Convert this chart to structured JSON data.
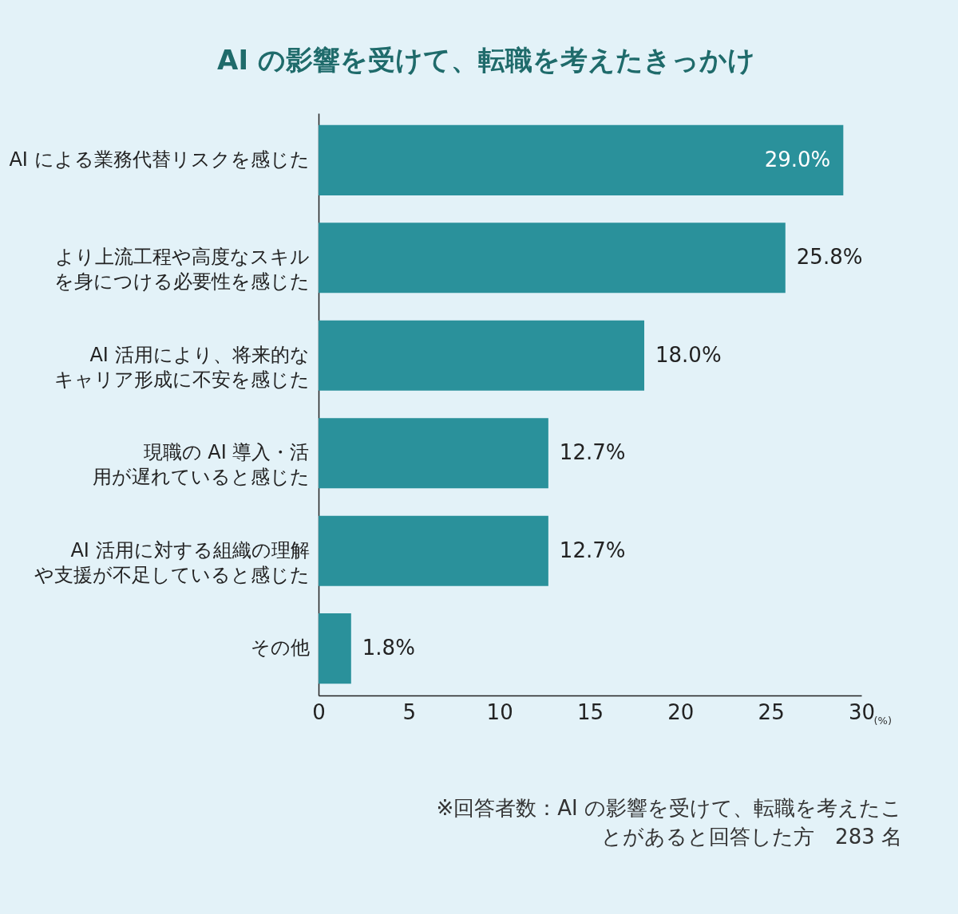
{
  "chart_data": {
    "type": "bar",
    "orientation": "horizontal",
    "title": "AI の影響を受けて、転職を考えたきっかけ",
    "categories": [
      "AI による業務代替リスクを感じた",
      "より上流工程や高度なスキルを身につける必要性を感じた",
      "AI 活用により、将来的なキャリア形成に不安を感じた",
      "現職の AI 導入・活用が遅れていると感じた",
      "AI 活用に対する組織の理解や支援が不足していると感じた",
      "その他"
    ],
    "values": [
      29.0,
      25.8,
      18.0,
      12.7,
      12.7,
      1.8
    ],
    "value_labels": [
      "29.0%",
      "25.8%",
      "18.0%",
      "12.7%",
      "12.7%",
      "1.8%"
    ],
    "color": "#2a919b",
    "xlim": [
      0,
      30
    ],
    "xticks": [
      0,
      5,
      10,
      15,
      20,
      25,
      30
    ],
    "xlabel": "(%)",
    "grid": false,
    "legend": false,
    "annotations": [
      "※回答者数：AI の影響を受けて、転職を考えたことがあると回答した方　283 名"
    ]
  }
}
